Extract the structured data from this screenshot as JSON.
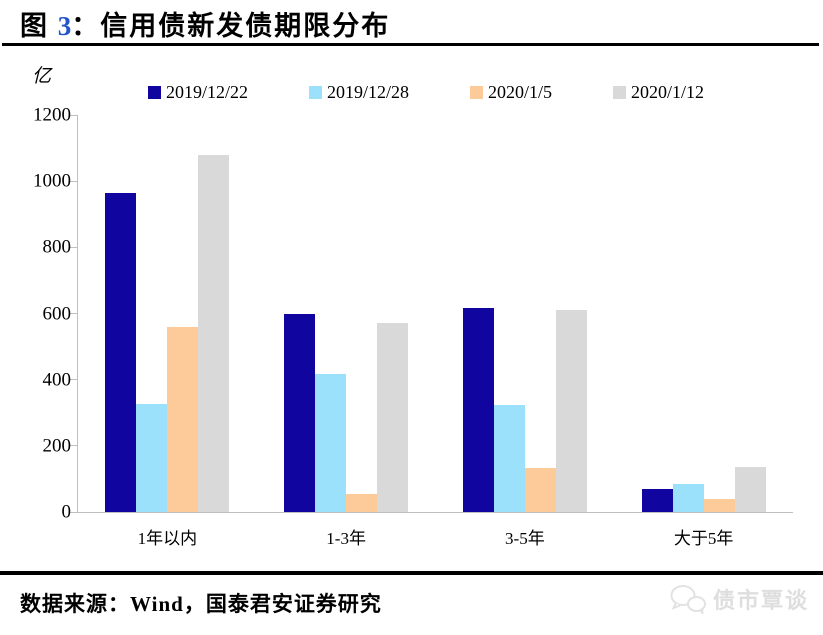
{
  "header": {
    "fig_prefix": "图 ",
    "fig_number": "3",
    "fig_separator": "：",
    "title": "信用债新发债期限分布"
  },
  "chart_data": {
    "type": "bar",
    "title": "图 3：信用债新发债期限分布",
    "unit_label": "亿",
    "xlabel": "",
    "ylabel": "亿",
    "categories": [
      "1年以内",
      "1-3年",
      "3-5年",
      "大于5年"
    ],
    "series": [
      {
        "name": "2019/12/22",
        "color": "#10069F",
        "values": [
          965,
          600,
          617,
          70
        ]
      },
      {
        "name": "2019/12/28",
        "color": "#9BE1FC",
        "values": [
          327,
          418,
          322,
          85
        ]
      },
      {
        "name": "2020/1/5",
        "color": "#FCCB99",
        "values": [
          560,
          55,
          132,
          38
        ]
      },
      {
        "name": "2020/1/12",
        "color": "#D9D9D9",
        "values": [
          1080,
          570,
          612,
          137
        ]
      }
    ],
    "ylim": [
      0,
      1200
    ],
    "yticks": [
      0,
      200,
      400,
      600,
      800,
      1000,
      1200
    ],
    "grid": false,
    "legend_position": "top"
  },
  "colors": {
    "fig_number_accent": "#2255CC",
    "axis": "#BFBFBF",
    "watermark": "#DEDEDE"
  },
  "footer": {
    "source": "数据来源：Wind，国泰君安证券研究",
    "watermark": "债市覃谈"
  }
}
